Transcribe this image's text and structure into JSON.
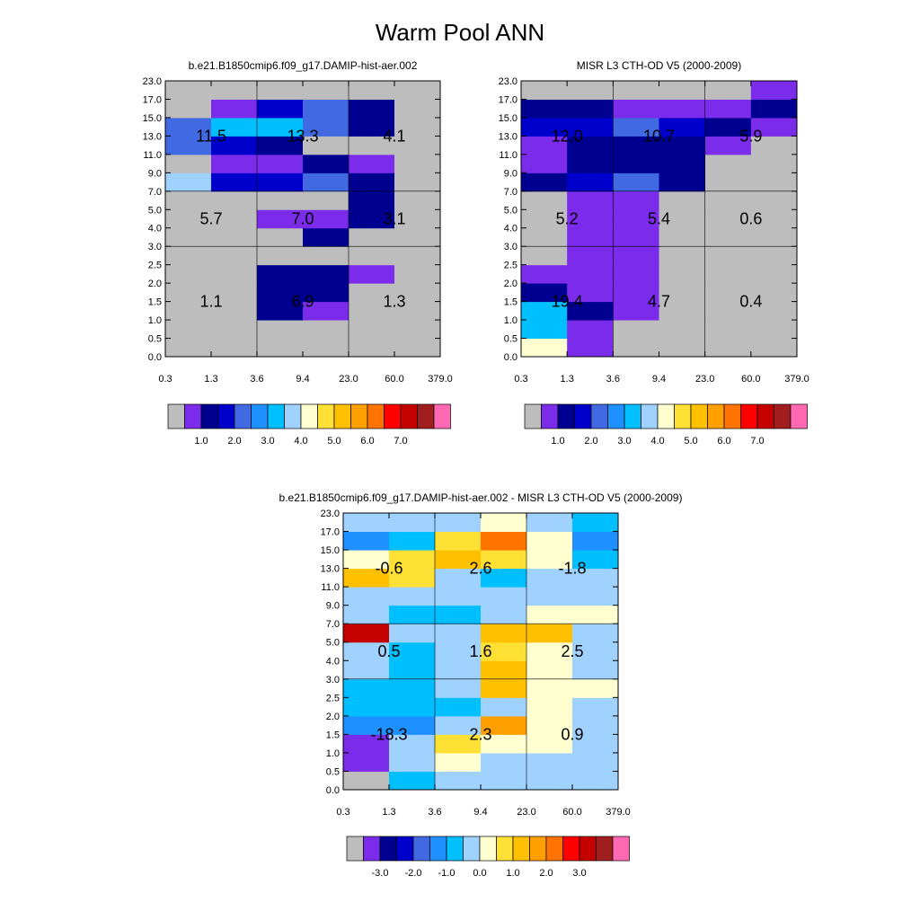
{
  "title": "Warm Pool ANN",
  "palette": {
    "top": [
      "#bdbdbd",
      "#7b2bea",
      "#000090",
      "#0000cd",
      "#4169e1",
      "#1e90ff",
      "#00bfff",
      "#a0d2ff",
      "#ffffd0",
      "#ffe135",
      "#ffc000",
      "#ff9f00",
      "#ff7300",
      "#ff0000",
      "#c40000",
      "#a01e1e",
      "#ff69b4"
    ],
    "diff": [
      "#bdbdbd",
      "#7b2bea",
      "#000090",
      "#0000cd",
      "#4169e1",
      "#1e90ff",
      "#00bfff",
      "#a0d2ff",
      "#ffffd0",
      "#ffe135",
      "#ffc000",
      "#ff9f00",
      "#ff7300",
      "#ff0000",
      "#c40000",
      "#a01e1e",
      "#ff69b4"
    ]
  },
  "chart_data": [
    {
      "type": "heatmap",
      "title": "b.e21.B1850cmip6.f09_g17.DAMIP-hist-aer.002",
      "x_ticks": [
        "0.3",
        "1.3",
        "3.6",
        "9.4",
        "23.0",
        "60.0",
        "379.0"
      ],
      "y_ticks": [
        "0.0",
        "0.5",
        "1.0",
        "1.5",
        "2.0",
        "2.5",
        "3.0",
        "4.0",
        "5.0",
        "7.0",
        "9.0",
        "11.0",
        "13.0",
        "15.0",
        "17.0",
        "23.0"
      ],
      "color_index_rows_bottom_to_top": [
        [
          0,
          0,
          0,
          0,
          0,
          0
        ],
        [
          0,
          0,
          0,
          0,
          0,
          0
        ],
        [
          0,
          0,
          2,
          1,
          0,
          0
        ],
        [
          0,
          0,
          2,
          2,
          0,
          0
        ],
        [
          0,
          0,
          2,
          2,
          1,
          0
        ],
        [
          0,
          0,
          0,
          0,
          0,
          0
        ],
        [
          0,
          0,
          0,
          2,
          0,
          0
        ],
        [
          0,
          0,
          1,
          1,
          2,
          0
        ],
        [
          0,
          0,
          0,
          0,
          2,
          0
        ],
        [
          7,
          3,
          3,
          4,
          2,
          0
        ],
        [
          0,
          1,
          1,
          2,
          1,
          0
        ],
        [
          4,
          3,
          2,
          0,
          0,
          0
        ],
        [
          4,
          6,
          6,
          4,
          2,
          0
        ],
        [
          0,
          1,
          3,
          4,
          2,
          0
        ],
        [
          0,
          0,
          0,
          0,
          0,
          0
        ]
      ],
      "labels": [
        {
          "text": "11.5",
          "x": 1,
          "y": 12
        },
        {
          "text": "13.3",
          "x": 3,
          "y": 12
        },
        {
          "text": "4.1",
          "x": 5,
          "y": 12
        },
        {
          "text": "5.7",
          "x": 1,
          "y": 7.5
        },
        {
          "text": "7.0",
          "x": 3,
          "y": 7.5
        },
        {
          "text": "3.1",
          "x": 5,
          "y": 7.5
        },
        {
          "text": "1.1",
          "x": 1,
          "y": 3
        },
        {
          "text": "6.9",
          "x": 3,
          "y": 3
        },
        {
          "text": "1.3",
          "x": 5,
          "y": 3
        }
      ],
      "colorbar_labels": [
        "1.0",
        "2.0",
        "3.0",
        "4.0",
        "5.0",
        "6.0",
        "7.0"
      ]
    },
    {
      "type": "heatmap",
      "title": "MISR L3 CTH-OD V5 (2000-2009)",
      "x_ticks": [
        "0.3",
        "1.3",
        "3.6",
        "9.4",
        "23.0",
        "60.0",
        "379.0"
      ],
      "y_ticks": [
        "0.0",
        "0.5",
        "1.0",
        "1.5",
        "2.0",
        "2.5",
        "3.0",
        "4.0",
        "5.0",
        "7.0",
        "9.0",
        "11.0",
        "13.0",
        "15.0",
        "17.0",
        "23.0"
      ],
      "color_index_rows_bottom_to_top": [
        [
          8,
          1,
          0,
          0,
          0,
          0
        ],
        [
          6,
          1,
          0,
          0,
          0,
          0
        ],
        [
          6,
          2,
          1,
          0,
          0,
          0
        ],
        [
          2,
          1,
          1,
          0,
          0,
          0
        ],
        [
          1,
          1,
          1,
          0,
          0,
          0
        ],
        [
          0,
          1,
          1,
          0,
          0,
          0
        ],
        [
          0,
          1,
          1,
          0,
          0,
          0
        ],
        [
          0,
          1,
          1,
          0,
          0,
          0
        ],
        [
          0,
          1,
          1,
          0,
          0,
          0
        ],
        [
          2,
          3,
          4,
          2,
          0,
          0
        ],
        [
          1,
          2,
          2,
          2,
          0,
          0
        ],
        [
          1,
          2,
          2,
          2,
          1,
          0
        ],
        [
          3,
          3,
          4,
          3,
          2,
          1
        ],
        [
          2,
          2,
          1,
          1,
          1,
          2
        ],
        [
          0,
          0,
          0,
          0,
          0,
          1
        ]
      ],
      "labels": [
        {
          "text": "12.0",
          "x": 1,
          "y": 12
        },
        {
          "text": "10.7",
          "x": 3,
          "y": 12
        },
        {
          "text": "5.9",
          "x": 5,
          "y": 12
        },
        {
          "text": "5.2",
          "x": 1,
          "y": 7.5
        },
        {
          "text": "5.4",
          "x": 3,
          "y": 7.5
        },
        {
          "text": "0.6",
          "x": 5,
          "y": 7.5
        },
        {
          "text": "19.4",
          "x": 1,
          "y": 3
        },
        {
          "text": "4.7",
          "x": 3,
          "y": 3
        },
        {
          "text": "0.4",
          "x": 5,
          "y": 3
        }
      ],
      "colorbar_labels": [
        "1.0",
        "2.0",
        "3.0",
        "4.0",
        "5.0",
        "6.0",
        "7.0"
      ]
    },
    {
      "type": "heatmap",
      "title": "b.e21.B1850cmip6.f09_g17.DAMIP-hist-aer.002 - MISR L3 CTH-OD V5 (2000-2009)",
      "x_ticks": [
        "0.3",
        "1.3",
        "3.6",
        "9.4",
        "23.0",
        "60.0",
        "379.0"
      ],
      "y_ticks": [
        "0.0",
        "0.5",
        "1.0",
        "1.5",
        "2.0",
        "2.5",
        "3.0",
        "4.0",
        "5.0",
        "7.0",
        "9.0",
        "11.0",
        "13.0",
        "15.0",
        "17.0",
        "23.0"
      ],
      "color_index_rows_bottom_to_top": [
        [
          0,
          6,
          7,
          7,
          7,
          7
        ],
        [
          1,
          7,
          8,
          7,
          7,
          7
        ],
        [
          1,
          7,
          9,
          8,
          8,
          7
        ],
        [
          5,
          5,
          7,
          11,
          8,
          7
        ],
        [
          6,
          6,
          6,
          7,
          8,
          7
        ],
        [
          6,
          6,
          7,
          10,
          8,
          8
        ],
        [
          7,
          6,
          7,
          10,
          8,
          7
        ],
        [
          7,
          6,
          7,
          9,
          8,
          7
        ],
        [
          14,
          7,
          7,
          10,
          10,
          7
        ],
        [
          7,
          6,
          6,
          7,
          8,
          8
        ],
        [
          7,
          7,
          7,
          7,
          7,
          7
        ],
        [
          10,
          9,
          7,
          6,
          7,
          7
        ],
        [
          8,
          9,
          10,
          9,
          8,
          6
        ],
        [
          5,
          6,
          9,
          12,
          8,
          5
        ],
        [
          7,
          7,
          7,
          8,
          7,
          6
        ]
      ],
      "labels": [
        {
          "text": "-0.6",
          "x": 1,
          "y": 12
        },
        {
          "text": "2.6",
          "x": 3,
          "y": 12
        },
        {
          "text": "-1.8",
          "x": 5,
          "y": 12
        },
        {
          "text": "0.5",
          "x": 1,
          "y": 7.5
        },
        {
          "text": "1.6",
          "x": 3,
          "y": 7.5
        },
        {
          "text": "2.5",
          "x": 5,
          "y": 7.5
        },
        {
          "text": "-18.3",
          "x": 1,
          "y": 3
        },
        {
          "text": "2.3",
          "x": 3,
          "y": 3
        },
        {
          "text": "0.9",
          "x": 5,
          "y": 3
        }
      ],
      "colorbar_labels": [
        "-3.0",
        "-2.0",
        "-1.0",
        "0.0",
        "1.0",
        "2.0",
        "3.0"
      ]
    }
  ]
}
